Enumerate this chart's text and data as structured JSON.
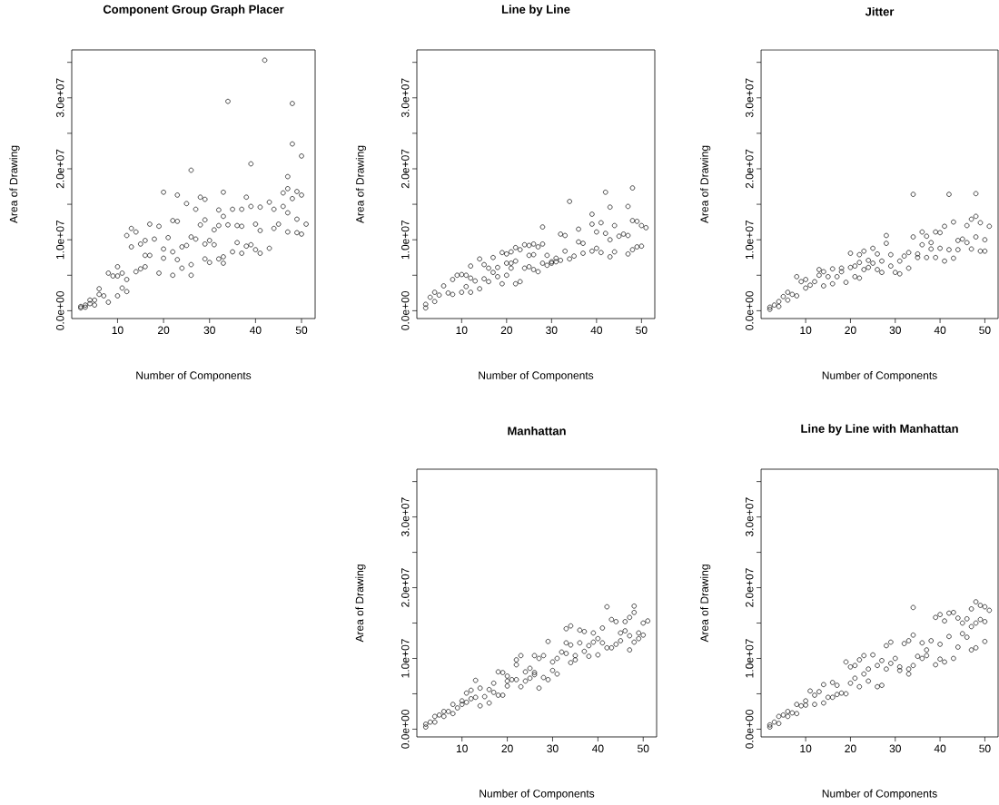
{
  "chart_data": [
    {
      "type": "scatter",
      "title": "Component Group Graph Placer",
      "xlabel": "Number of Components",
      "ylabel": "Area of Drawing",
      "marker": "circle",
      "color": "#000000",
      "xlim": [
        0.04,
        52.96
      ],
      "ylim": [
        -1100000,
        36750000
      ],
      "xticks": [
        10,
        20,
        30,
        40,
        50
      ],
      "yticks": [
        {
          "value": 0,
          "label": "0.0e+00"
        },
        {
          "value": 5000000,
          "label": null
        },
        {
          "value": 10000000,
          "label": "1.0e+07"
        },
        {
          "value": 15000000,
          "label": null
        },
        {
          "value": 20000000,
          "label": "2.0e+07"
        },
        {
          "value": 25000000,
          "label": null
        },
        {
          "value": 30000000,
          "label": "3.0e+07"
        },
        {
          "value": 35000000,
          "label": null
        }
      ],
      "x": [
        42,
        34,
        48,
        48,
        50,
        39,
        26,
        47,
        20,
        33,
        23,
        47,
        49,
        50,
        46,
        28,
        29,
        38,
        25,
        43,
        27,
        35,
        32,
        37,
        39,
        41,
        44,
        46,
        47,
        48,
        51,
        49,
        45,
        44,
        47,
        49,
        50,
        40,
        41,
        36,
        37,
        34,
        33,
        32,
        31,
        22,
        23,
        19,
        17,
        13,
        14,
        12,
        28,
        29,
        26,
        27,
        30,
        31,
        29,
        24,
        25,
        22,
        20,
        20,
        21,
        18,
        16,
        15,
        13,
        16,
        19,
        22,
        24,
        26,
        26,
        29,
        30,
        32,
        33,
        33,
        35,
        37,
        38,
        40,
        41,
        43,
        36,
        39,
        23,
        17,
        16,
        15,
        14,
        12,
        11,
        10,
        10,
        9,
        8,
        10,
        12,
        11,
        8,
        7,
        6,
        6,
        5,
        4,
        4,
        3,
        2,
        2,
        3,
        5
      ],
      "values": [
        35300000.0,
        29500000.0,
        29200000.0,
        23500000.0,
        21800000.0,
        20700000.0,
        19800000.0,
        18900000.0,
        16700000.0,
        16700000.0,
        16300000.0,
        17200000.0,
        16800000.0,
        16300000.0,
        16600000.0,
        16000000.0,
        15700000.0,
        16000000.0,
        15100000.0,
        15300000.0,
        14300000.0,
        14300000.0,
        14200000.0,
        14300000.0,
        14700000.0,
        14600000.0,
        14300000.0,
        14700000.0,
        13800000.0,
        15800000.0,
        12200000.0,
        12900000.0,
        12200000.0,
        11600000.0,
        11100000.0,
        11000000.0,
        10800000.0,
        12200000.0,
        11300000.0,
        12000000.0,
        11900000.0,
        12100000.0,
        13300000.0,
        12000000.0,
        11400000.0,
        12700000.0,
        12600000.0,
        11900000.0,
        12200000.0,
        11600000.0,
        11100000.0,
        10600000.0,
        12100000.0,
        12800000.0,
        10400000.0,
        10100000.0,
        9900000.0,
        9300000.0,
        9400000.0,
        9000000.0,
        9200000.0,
        8300000.0,
        8700000.0,
        7400000.0,
        10300000.0,
        10100000.0,
        9900000.0,
        9400000.0,
        9000000.0,
        7800000.0,
        5300000.0,
        5000000.0,
        6000000.0,
        6500000.0,
        5000000.0,
        7300000.0,
        6800000.0,
        7300000.0,
        6700000.0,
        7600000.0,
        8300000.0,
        8100000.0,
        9100000.0,
        8600000.0,
        8100000.0,
        8800000.0,
        9600000.0,
        9300000.0,
        7200000.0,
        7800000.0,
        6200000.0,
        5900000.0,
        5500000.0,
        4400000.0,
        5300000.0,
        6200000.0,
        4900000.0,
        4900000.0,
        5300000.0,
        2100000.0,
        2700000.0,
        3200000.0,
        1200000.0,
        2100000.0,
        3100000.0,
        2300000.0,
        1500000.0,
        1500000.0,
        1000000.0,
        800000.0,
        600000.0,
        400000.0,
        500000.0,
        800000.0
      ]
    },
    {
      "type": "scatter",
      "title": "Line by Line",
      "xlabel": "Number of Components",
      "ylabel": "Area of Drawing",
      "marker": "circle",
      "color": "#000000",
      "xlim": [
        0.04,
        52.96
      ],
      "ylim": [
        -1100000,
        36750000
      ],
      "xticks": [
        10,
        20,
        30,
        40,
        50
      ],
      "yticks": [
        {
          "value": 0,
          "label": "0.0e+00"
        },
        {
          "value": 5000000,
          "label": null
        },
        {
          "value": 10000000,
          "label": "1.0e+07"
        },
        {
          "value": 15000000,
          "label": null
        },
        {
          "value": 20000000,
          "label": "2.0e+07"
        },
        {
          "value": 25000000,
          "label": null
        },
        {
          "value": 30000000,
          "label": "3.0e+07"
        },
        {
          "value": 35000000,
          "label": null
        }
      ],
      "x": [
        48,
        42,
        34,
        43,
        47,
        39,
        41,
        44,
        48,
        49,
        50,
        51,
        28,
        39,
        36,
        32,
        33,
        40,
        42,
        45,
        46,
        47,
        43,
        49,
        50,
        48,
        47,
        44,
        43,
        41,
        40,
        39,
        37,
        36,
        37,
        35,
        34,
        33,
        32,
        31,
        30,
        29,
        28,
        27,
        26,
        25,
        24,
        22,
        23,
        21,
        20,
        19,
        17,
        14,
        12,
        10,
        9,
        8,
        6,
        4,
        3,
        2,
        2,
        4,
        5,
        7,
        8,
        10,
        11,
        12,
        13,
        14,
        15,
        16,
        17,
        18,
        19,
        20,
        21,
        22,
        23,
        24,
        25,
        26,
        27,
        28,
        29,
        30,
        31,
        25,
        22,
        20,
        15,
        12,
        11,
        16,
        18,
        21,
        26
      ],
      "values": [
        17300000.0,
        16700000.0,
        15400000.0,
        14600000.0,
        14700000.0,
        13600000.0,
        12400000.0,
        12000000.0,
        12700000.0,
        12600000.0,
        12000000.0,
        11700000.0,
        11800000.0,
        12200000.0,
        11500000.0,
        10800000.0,
        10600000.0,
        11100000.0,
        10900000.0,
        10500000.0,
        10800000.0,
        10600000.0,
        10000000.0,
        9000000.0,
        9100000.0,
        8600000.0,
        8000000.0,
        8300000.0,
        7600000.0,
        8200000.0,
        8800000.0,
        8400000.0,
        8100000.0,
        9700000.0,
        9500000.0,
        7700000.0,
        7300000.0,
        8400000.0,
        7100000.0,
        6900000.0,
        6900000.0,
        7800000.0,
        9400000.0,
        9000000.0,
        9400000.0,
        9200000.0,
        9300000.0,
        8900000.0,
        8600000.0,
        8300000.0,
        8000000.0,
        8200000.0,
        7500000.0,
        7300000.0,
        6300000.0,
        5100000.0,
        5000000.0,
        4400000.0,
        3500000.0,
        2600000.0,
        1900000.0,
        900000.0,
        400000.0,
        1300000.0,
        2200000.0,
        2500000.0,
        2300000.0,
        2600000.0,
        3400000.0,
        2600000.0,
        4200000.0,
        3100000.0,
        4500000.0,
        4100000.0,
        5400000.0,
        4800000.0,
        3800000.0,
        5000000.0,
        6000000.0,
        3800000.0,
        4100000.0,
        6000000.0,
        6200000.0,
        5800000.0,
        5500000.0,
        6700000.0,
        6400000.0,
        6700000.0,
        7400000.0,
        7800000.0,
        7000000.0,
        6700000.0,
        6500000.0,
        4600000.0,
        5000000.0,
        6000000.0,
        6100000.0,
        6700000.0,
        7900000.0
      ]
    },
    {
      "type": "scatter",
      "title": "Jitter",
      "xlabel": "Number of Components",
      "ylabel": "Area of Drawing",
      "marker": "circle",
      "color": "#000000",
      "xlim": [
        0.04,
        52.96
      ],
      "ylim": [
        -1100000,
        36750000
      ],
      "xticks": [
        10,
        20,
        30,
        40,
        50
      ],
      "yticks": [
        {
          "value": 0,
          "label": "0.0e+00"
        },
        {
          "value": 5000000,
          "label": null
        },
        {
          "value": 10000000,
          "label": "1.0e+07"
        },
        {
          "value": 15000000,
          "label": null
        },
        {
          "value": 20000000,
          "label": "2.0e+07"
        },
        {
          "value": 25000000,
          "label": null
        },
        {
          "value": 30000000,
          "label": "3.0e+07"
        },
        {
          "value": 35000000,
          "label": null
        }
      ],
      "x": [
        34,
        42,
        48,
        48,
        47,
        49,
        51,
        46,
        43,
        41,
        36,
        37,
        34,
        39,
        40,
        28,
        28,
        25,
        20,
        22,
        23,
        26,
        29,
        33,
        32,
        35,
        38,
        40,
        42,
        44,
        45,
        46,
        47,
        49,
        50,
        43,
        41,
        39,
        37,
        33,
        31,
        30,
        29,
        27,
        26,
        24,
        22,
        21,
        19,
        17,
        16,
        18,
        20,
        22,
        24,
        14,
        13,
        12,
        11,
        10,
        10,
        14,
        16,
        18,
        13,
        9,
        8,
        8,
        7,
        6,
        6,
        5,
        4,
        4,
        3,
        2,
        2,
        31,
        35,
        27,
        21,
        15,
        25,
        44,
        48,
        50,
        36,
        38,
        23
      ],
      "values": [
        16400000.0,
        16400000.0,
        16500000.0,
        13300000.0,
        12900000.0,
        12400000.0,
        11900000.0,
        12000000.0,
        12500000.0,
        11900000.0,
        11100000.0,
        10500000.0,
        10400000.0,
        11100000.0,
        11000000.0,
        10600000.0,
        9500000.0,
        8800000.0,
        8100000.0,
        7900000.0,
        8400000.0,
        8000000.0,
        7900000.0,
        8200000.0,
        7700000.0,
        7500000.0,
        8700000.0,
        8800000.0,
        8600000.0,
        9900000.0,
        10100000.0,
        9600000.0,
        8700000.0,
        8400000.0,
        8400000.0,
        7400000.0,
        7000000.0,
        7500000.0,
        7500000.0,
        6000000.0,
        5200000.0,
        5400000.0,
        6300000.0,
        5400000.0,
        5800000.0,
        6100000.0,
        4600000.0,
        4800000.0,
        4000000.0,
        4800000.0,
        5900000.0,
        6000000.0,
        6100000.0,
        6800000.0,
        7100000.0,
        5500000.0,
        5800000.0,
        4100000.0,
        3600000.0,
        3200000.0,
        4400000.0,
        3500000.0,
        3800000.0,
        5500000.0,
        5000000.0,
        4100000.0,
        4800000.0,
        2100000.0,
        2300000.0,
        2600000.0,
        1500000.0,
        2000000.0,
        1300000.0,
        600000.0,
        800000.0,
        500000.0,
        200000.0,
        7000000.0,
        8000000.0,
        7000000.0,
        6300000.0,
        4800000.0,
        6700000.0,
        8600000.0,
        10400000.0,
        10000000.0,
        9300000.0,
        9600000.0,
        5800000.0
      ]
    },
    {
      "type": "scatter",
      "title": "Manhattan",
      "xlabel": "Number of Components",
      "ylabel": "Area of Drawing",
      "marker": "circle",
      "color": "#000000",
      "xlim": [
        0.04,
        52.96
      ],
      "ylim": [
        -1100000,
        36750000
      ],
      "xticks": [
        10,
        20,
        30,
        40,
        50
      ],
      "yticks": [
        {
          "value": 0,
          "label": "0.0e+00"
        },
        {
          "value": 5000000,
          "label": null
        },
        {
          "value": 10000000,
          "label": "1.0e+07"
        },
        {
          "value": 15000000,
          "label": null
        },
        {
          "value": 20000000,
          "label": "2.0e+07"
        },
        {
          "value": 25000000,
          "label": null
        },
        {
          "value": 30000000,
          "label": "3.0e+07"
        },
        {
          "value": 35000000,
          "label": null
        }
      ],
      "x": [
        42,
        48,
        48,
        47,
        46,
        51,
        50,
        43,
        44,
        34,
        33,
        36,
        37,
        39,
        41,
        45,
        46,
        47,
        49,
        50,
        48,
        47,
        40,
        41,
        39,
        40,
        43,
        44,
        38,
        36,
        37,
        33,
        34,
        29,
        31,
        32,
        33,
        34,
        35,
        30,
        28,
        26,
        27,
        23,
        22,
        22,
        24,
        25,
        26,
        28,
        29,
        31,
        27,
        26,
        24,
        22,
        20,
        19,
        18,
        20,
        19,
        21,
        17,
        16,
        15,
        14,
        13,
        12,
        11,
        12,
        10,
        10,
        9,
        8,
        8,
        7,
        6,
        6,
        5,
        4,
        4,
        3,
        2,
        2,
        14,
        16,
        18,
        23,
        25,
        30,
        35,
        38,
        42,
        45,
        49,
        20,
        17,
        13,
        11
      ],
      "values": [
        17300000.0,
        17400000.0,
        16500000.0,
        15800000.0,
        15200000.0,
        15300000.0,
        15000000.0,
        15500000.0,
        15200000.0,
        14600000.0,
        14200000.0,
        14000000.0,
        13800000.0,
        13600000.0,
        14300000.0,
        13600000.0,
        13900000.0,
        13200000.0,
        13600000.0,
        13300000.0,
        12300000.0,
        11200000.0,
        12800000.0,
        12200000.0,
        12300000.0,
        10500000.0,
        11500000.0,
        12000000.0,
        11800000.0,
        12200000.0,
        11000000.0,
        12200000.0,
        11900000.0,
        12400000.0,
        10000000.0,
        10900000.0,
        10700000.0,
        9400000.0,
        10400000.0,
        9500000.0,
        10400000.0,
        10400000.0,
        10000000.0,
        10400000.0,
        9800000.0,
        9100000.0,
        8100000.0,
        8600000.0,
        7700000.0,
        7300000.0,
        7000000.0,
        7800000.0,
        5800000.0,
        8000000.0,
        6800000.0,
        7000000.0,
        7500000.0,
        8000000.0,
        8100000.0,
        6100000.0,
        4800000.0,
        7000000.0,
        6500000.0,
        5600000.0,
        4600000.0,
        5800000.0,
        6900000.0,
        5500000.0,
        5100000.0,
        4300000.0,
        3500000.0,
        4000000.0,
        3000000.0,
        3500000.0,
        2200000.0,
        2500000.0,
        2500000.0,
        1800000.0,
        2000000.0,
        1800000.0,
        1000000.0,
        1000000.0,
        700000.0,
        300000.0,
        3300000.0,
        3700000.0,
        4800000.0,
        6000000.0,
        7200000.0,
        8300000.0,
        9800000.0,
        10300000.0,
        11500000.0,
        12500000.0,
        12800000.0,
        6800000.0,
        5200000.0,
        4500000.0,
        3800000.0
      ]
    },
    {
      "type": "scatter",
      "title": "Line by Line with Manhattan",
      "xlabel": "Number of Components",
      "ylabel": "Area of Drawing",
      "marker": "circle",
      "color": "#000000",
      "xlim": [
        0.04,
        52.96
      ],
      "ylim": [
        -1100000,
        36750000
      ],
      "xticks": [
        10,
        20,
        30,
        40,
        50
      ],
      "yticks": [
        {
          "value": 0,
          "label": "0.0e+00"
        },
        {
          "value": 5000000,
          "label": null
        },
        {
          "value": 10000000,
          "label": "1.0e+07"
        },
        {
          "value": 15000000,
          "label": null
        },
        {
          "value": 20000000,
          "label": "2.0e+07"
        },
        {
          "value": 25000000,
          "label": null
        },
        {
          "value": 30000000,
          "label": "3.0e+07"
        },
        {
          "value": 35000000,
          "label": null
        }
      ],
      "x": [
        34,
        48,
        49,
        50,
        51,
        47,
        43,
        42,
        44,
        45,
        46,
        49,
        50,
        41,
        39,
        40,
        48,
        47,
        50,
        48,
        47,
        44,
        43,
        40,
        41,
        39,
        36,
        37,
        38,
        36,
        34,
        33,
        32,
        29,
        28,
        30,
        31,
        33,
        34,
        33,
        29,
        26,
        25,
        23,
        22,
        19,
        20,
        21,
        24,
        26,
        27,
        24,
        22,
        20,
        19,
        17,
        16,
        15,
        14,
        13,
        11,
        10,
        10,
        9,
        8,
        8,
        7,
        6,
        6,
        5,
        4,
        4,
        3,
        2,
        2,
        12,
        14,
        16,
        18,
        21,
        23,
        28,
        31,
        35,
        37,
        40,
        42,
        45,
        46,
        27,
        17,
        12
      ],
      "values": [
        17200000.0,
        18000000.0,
        17500000.0,
        17300000.0,
        16800000.0,
        17000000.0,
        16500000.0,
        16400000.0,
        15700000.0,
        15000000.0,
        15600000.0,
        15500000.0,
        15200000.0,
        15300000.0,
        15800000.0,
        16200000.0,
        15000000.0,
        14500000.0,
        12400000.0,
        11500000.0,
        11200000.0,
        11600000.0,
        10000000.0,
        9900000.0,
        9500000.0,
        9100000.0,
        10000000.0,
        10400000.0,
        12500000.0,
        12200000.0,
        13300000.0,
        12500000.0,
        12100000.0,
        12300000.0,
        11800000.0,
        10000000.0,
        8800000.0,
        8500000.0,
        9000000.0,
        7800000.0,
        9300000.0,
        9000000.0,
        10500000.0,
        10400000.0,
        9800000.0,
        9500000.0,
        8800000.0,
        9000000.0,
        8500000.0,
        6000000.0,
        6200000.0,
        6800000.0,
        6000000.0,
        6500000.0,
        5000000.0,
        6200000.0,
        6600000.0,
        4500000.0,
        6300000.0,
        5300000.0,
        5400000.0,
        4000000.0,
        3400000.0,
        3300000.0,
        3500000.0,
        2200000.0,
        2300000.0,
        2500000.0,
        1800000.0,
        2000000.0,
        1800000.0,
        800000.0,
        1000000.0,
        600000.0,
        300000.0,
        3500000.0,
        3700000.0,
        4500000.0,
        5100000.0,
        7200000.0,
        7800000.0,
        8500000.0,
        8300000.0,
        10300000.0,
        11200000.0,
        12000000.0,
        13100000.0,
        13500000.0,
        13000000.0,
        9700000.0,
        4900000.0,
        4800000.0
      ]
    }
  ]
}
